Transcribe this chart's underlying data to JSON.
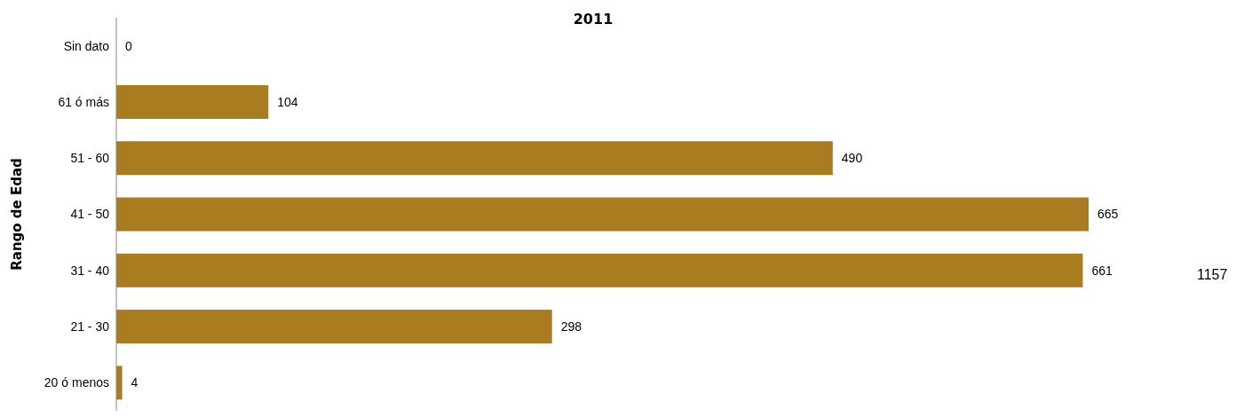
{
  "chart_data": {
    "type": "bar",
    "orientation": "horizontal",
    "title": "2011",
    "ylabel": "Rango de Edad",
    "categories": [
      "Sin dato",
      "61 ó más",
      "51 - 60",
      "41 - 50",
      "31 - 40",
      "21 - 30",
      "20 ó menos"
    ],
    "values": [
      0,
      104,
      490,
      665,
      661,
      298,
      4
    ],
    "color": "#a87c1f",
    "data_labels": true,
    "annotations": [
      "1157"
    ]
  }
}
